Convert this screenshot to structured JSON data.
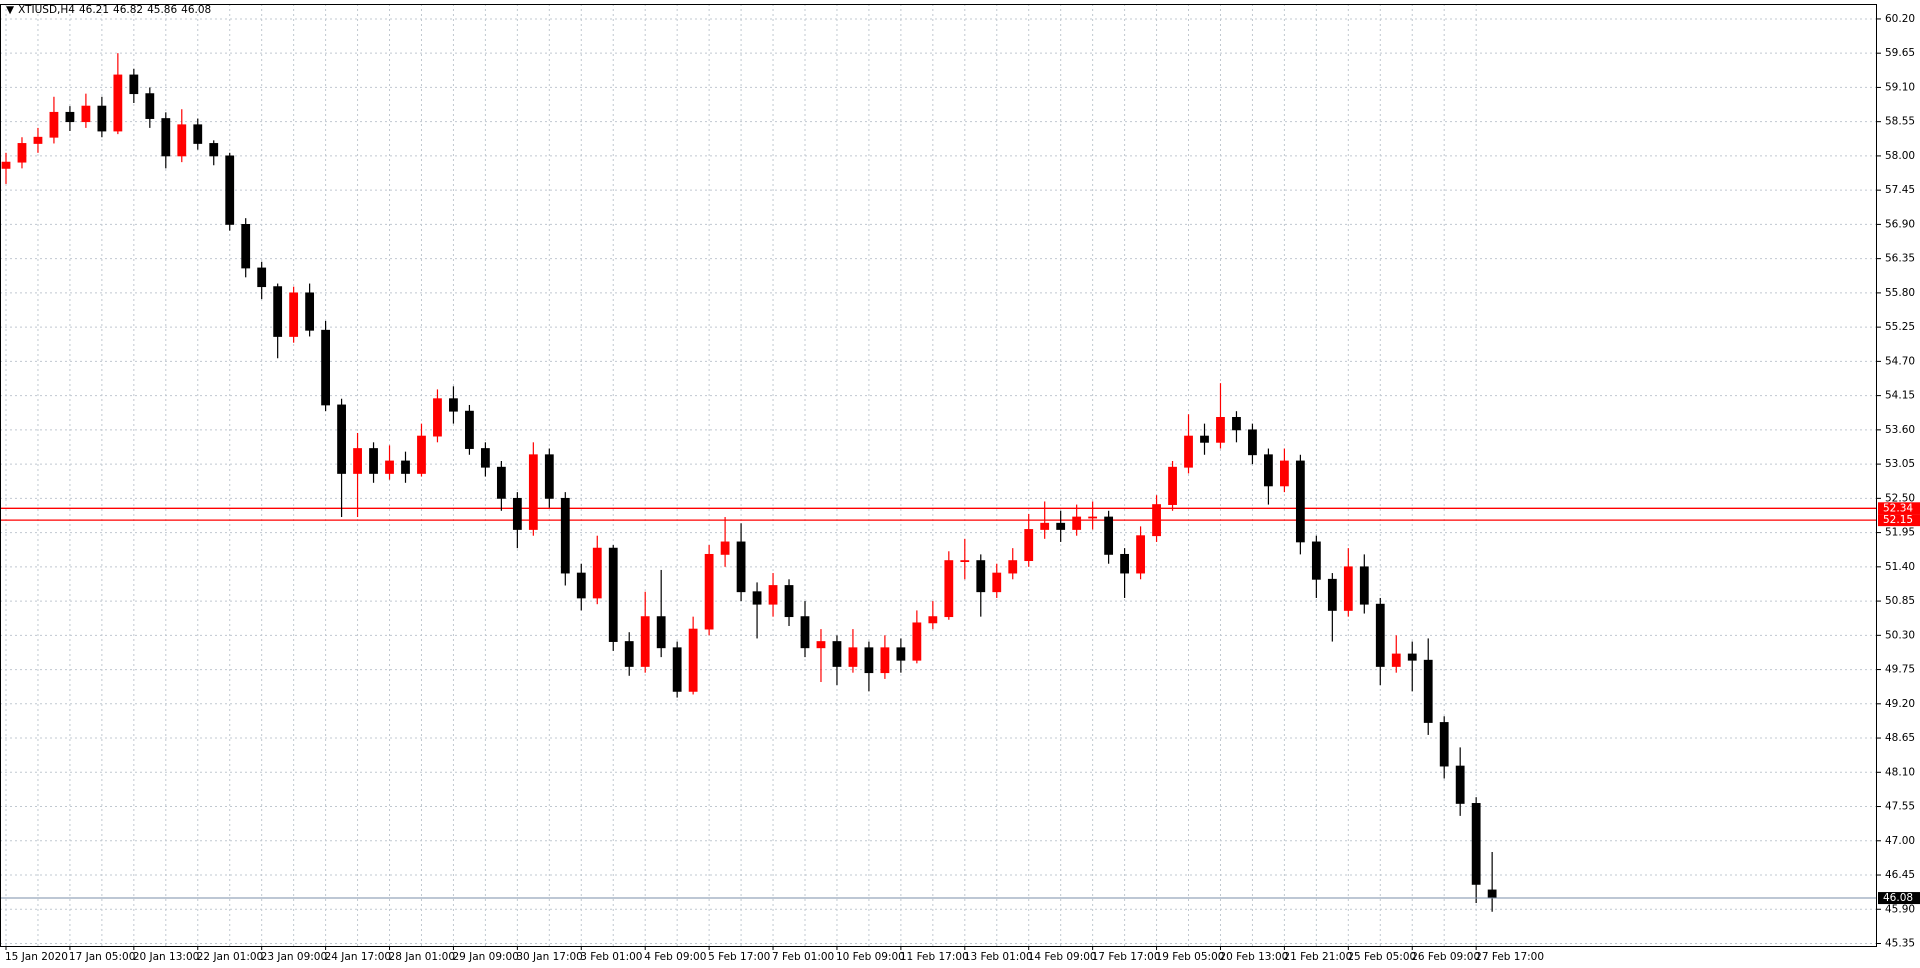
{
  "chart_data": {
    "type": "candlestick",
    "symbol": "XTIUSD,H4",
    "categories": [
      "15 Jan 2020",
      null,
      null,
      null,
      "17 Jan 05:00",
      null,
      null,
      null,
      "20 Jan 13:00",
      null,
      null,
      null,
      "22 Jan 01:00",
      null,
      null,
      null,
      "23 Jan 09:00",
      null,
      null,
      null,
      "24 Jan 17:00",
      null,
      null,
      null,
      "28 Jan 01:00",
      null,
      null,
      null,
      "29 Jan 09:00",
      null,
      null,
      null,
      "30 Jan 17:00",
      null,
      null,
      null,
      "3 Feb 01:00",
      null,
      null,
      null,
      "4 Feb 09:00",
      null,
      null,
      null,
      "5 Feb 17:00",
      null,
      null,
      null,
      "7 Feb 01:00",
      null,
      null,
      null,
      "10 Feb 09:00",
      null,
      null,
      null,
      "11 Feb 17:00",
      null,
      null,
      null,
      "13 Feb 01:00",
      null,
      null,
      null,
      "14 Feb 09:00",
      null,
      null,
      null,
      "17 Feb 17:00",
      null,
      null,
      null,
      "19 Feb 05:00",
      null,
      null,
      null,
      "20 Feb 13:00",
      null,
      null,
      null,
      "21 Feb 21:00",
      null,
      null,
      null,
      "25 Feb 05:00",
      null,
      null,
      null,
      "26 Feb 09:00",
      null,
      null,
      null,
      "27 Feb 17:00",
      null
    ],
    "candles": [
      [
        57.8,
        58.05,
        57.55,
        57.9
      ],
      [
        57.9,
        58.3,
        57.8,
        58.2
      ],
      [
        58.2,
        58.45,
        58.05,
        58.3
      ],
      [
        58.3,
        58.95,
        58.2,
        58.7
      ],
      [
        58.7,
        58.8,
        58.4,
        58.55
      ],
      [
        58.55,
        59.0,
        58.45,
        58.8
      ],
      [
        58.8,
        58.95,
        58.3,
        58.4
      ],
      [
        58.4,
        59.65,
        58.35,
        59.3
      ],
      [
        59.3,
        59.4,
        58.85,
        59.0
      ],
      [
        59.0,
        59.1,
        58.45,
        58.6
      ],
      [
        58.6,
        58.7,
        57.8,
        58.0
      ],
      [
        58.0,
        58.75,
        57.9,
        58.5
      ],
      [
        58.5,
        58.6,
        58.1,
        58.2
      ],
      [
        58.2,
        58.25,
        57.85,
        58.0
      ],
      [
        58.0,
        58.05,
        56.8,
        56.9
      ],
      [
        56.9,
        57.0,
        56.05,
        56.2
      ],
      [
        56.2,
        56.3,
        55.7,
        55.9
      ],
      [
        55.9,
        55.95,
        54.75,
        55.1
      ],
      [
        55.1,
        55.9,
        55.0,
        55.8
      ],
      [
        55.8,
        55.95,
        55.1,
        55.2
      ],
      [
        55.2,
        55.35,
        53.9,
        54.0
      ],
      [
        54.0,
        54.1,
        52.2,
        52.9
      ],
      [
        52.9,
        53.55,
        52.2,
        53.3
      ],
      [
        53.3,
        53.4,
        52.75,
        52.9
      ],
      [
        52.9,
        53.35,
        52.8,
        53.1
      ],
      [
        53.1,
        53.25,
        52.75,
        52.9
      ],
      [
        52.9,
        53.7,
        52.85,
        53.5
      ],
      [
        53.5,
        54.25,
        53.4,
        54.1
      ],
      [
        54.1,
        54.3,
        53.7,
        53.9
      ],
      [
        53.9,
        54.0,
        53.2,
        53.3
      ],
      [
        53.3,
        53.4,
        52.85,
        53.0
      ],
      [
        53.0,
        53.1,
        52.3,
        52.5
      ],
      [
        52.5,
        52.6,
        51.7,
        52.0
      ],
      [
        52.0,
        53.4,
        51.9,
        53.2
      ],
      [
        53.2,
        53.3,
        52.35,
        52.5
      ],
      [
        52.5,
        52.6,
        51.1,
        51.3
      ],
      [
        51.3,
        51.45,
        50.7,
        50.9
      ],
      [
        50.9,
        51.9,
        50.8,
        51.7
      ],
      [
        51.7,
        51.75,
        50.05,
        50.2
      ],
      [
        50.2,
        50.35,
        49.65,
        49.8
      ],
      [
        49.8,
        51.0,
        49.7,
        50.6
      ],
      [
        50.6,
        51.35,
        49.95,
        50.1
      ],
      [
        50.1,
        50.2,
        49.3,
        49.4
      ],
      [
        49.4,
        50.6,
        49.35,
        50.4
      ],
      [
        50.4,
        51.75,
        50.3,
        51.6
      ],
      [
        51.6,
        52.2,
        51.4,
        51.8
      ],
      [
        51.8,
        52.1,
        50.85,
        51.0
      ],
      [
        51.0,
        51.15,
        50.25,
        50.8
      ],
      [
        50.8,
        51.3,
        50.6,
        51.1
      ],
      [
        51.1,
        51.2,
        50.45,
        50.6
      ],
      [
        50.6,
        50.85,
        49.95,
        50.1
      ],
      [
        50.1,
        50.4,
        49.55,
        50.2
      ],
      [
        50.2,
        50.3,
        49.5,
        49.8
      ],
      [
        49.8,
        50.4,
        49.7,
        50.1
      ],
      [
        50.1,
        50.2,
        49.4,
        49.7
      ],
      [
        49.7,
        50.3,
        49.6,
        50.1
      ],
      [
        50.1,
        50.25,
        49.7,
        49.9
      ],
      [
        49.9,
        50.7,
        49.85,
        50.5
      ],
      [
        50.5,
        50.85,
        50.4,
        50.6
      ],
      [
        50.6,
        51.65,
        50.55,
        51.5
      ],
      [
        51.5,
        51.85,
        51.2,
        51.5
      ],
      [
        51.5,
        51.6,
        50.6,
        51.0
      ],
      [
        51.0,
        51.45,
        50.9,
        51.3
      ],
      [
        51.3,
        51.7,
        51.2,
        51.5
      ],
      [
        51.5,
        52.25,
        51.4,
        52.0
      ],
      [
        52.0,
        52.45,
        51.85,
        52.1
      ],
      [
        52.1,
        52.3,
        51.8,
        52.0
      ],
      [
        52.0,
        52.4,
        51.9,
        52.2
      ],
      [
        52.2,
        52.45,
        52.0,
        52.2
      ],
      [
        52.2,
        52.3,
        51.45,
        51.6
      ],
      [
        51.6,
        51.7,
        50.9,
        51.3
      ],
      [
        51.3,
        52.05,
        51.2,
        51.9
      ],
      [
        51.9,
        52.55,
        51.8,
        52.4
      ],
      [
        52.4,
        53.1,
        52.3,
        53.0
      ],
      [
        53.0,
        53.85,
        52.9,
        53.5
      ],
      [
        53.5,
        53.7,
        53.2,
        53.4
      ],
      [
        53.4,
        54.35,
        53.3,
        53.8
      ],
      [
        53.8,
        53.9,
        53.4,
        53.6
      ],
      [
        53.6,
        53.7,
        53.05,
        53.2
      ],
      [
        53.2,
        53.3,
        52.4,
        52.7
      ],
      [
        52.7,
        53.3,
        52.6,
        53.1
      ],
      [
        53.1,
        53.2,
        51.6,
        51.8
      ],
      [
        51.8,
        51.9,
        50.9,
        51.2
      ],
      [
        51.2,
        51.3,
        50.2,
        50.7
      ],
      [
        50.7,
        51.7,
        50.6,
        51.4
      ],
      [
        51.4,
        51.6,
        50.65,
        50.8
      ],
      [
        50.8,
        50.9,
        49.5,
        49.8
      ],
      [
        49.8,
        50.3,
        49.7,
        50.0
      ],
      [
        50.0,
        50.2,
        49.4,
        49.9
      ],
      [
        49.9,
        50.25,
        48.7,
        48.9
      ],
      [
        48.9,
        49.0,
        48.0,
        48.2
      ],
      [
        48.2,
        48.5,
        47.4,
        47.6
      ],
      [
        47.6,
        47.7,
        46.0,
        46.3
      ],
      [
        46.21,
        46.82,
        45.86,
        46.08
      ]
    ],
    "up_color": "#ff0000",
    "down_color": "#000000",
    "ylim": [
      45.31,
      60.44
    ],
    "yticks": [
      {
        "value": 60.2,
        "label": "60.20"
      },
      59.65,
      {
        "value": 59.1,
        "label": "59.10"
      },
      58.55,
      {
        "value": 58,
        "label": "58.00"
      },
      57.45,
      {
        "value": 56.9,
        "label": "56.90"
      },
      56.35,
      {
        "value": 55.8,
        "label": "55.80"
      },
      55.25,
      {
        "value": 54.7,
        "label": "54.70"
      },
      54.15,
      {
        "value": 53.6,
        "label": "53.60"
      },
      53.05,
      {
        "value": 52.5,
        "label": "52.50"
      },
      51.95,
      {
        "value": 51.4,
        "label": "51.40"
      },
      50.85,
      {
        "value": 50.3,
        "label": "50.30"
      },
      49.75,
      {
        "value": 49.2,
        "label": "49.20"
      },
      48.65,
      {
        "value": 48.1,
        "label": "48.10"
      },
      47.55,
      {
        "value": 47,
        "label": "47.00"
      },
      46.45,
      {
        "value": 45.9,
        "label": "45.90"
      },
      45.35
    ],
    "grid": true,
    "hlines": [
      {
        "value": 52.34,
        "color": "#ff0000"
      },
      {
        "value": 52.15,
        "color": "#ff0000"
      }
    ],
    "price_line_color": "#7b8fa8"
  }
}
